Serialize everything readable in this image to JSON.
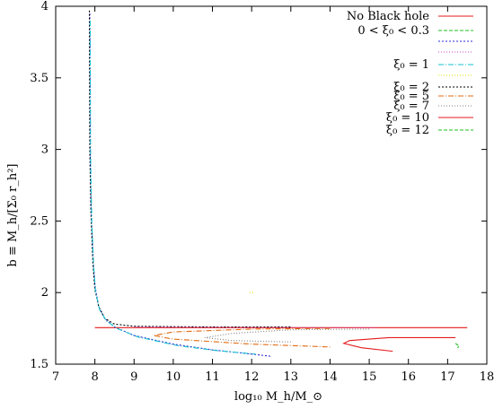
{
  "chart_data": {
    "type": "line",
    "xlabel": "log₁₀ M_h/M_⊙",
    "ylabel": "b ≡ M_h/[Σ₀ r_h²]",
    "xlim": [
      7,
      18
    ],
    "ylim": [
      1.5,
      4
    ],
    "xticks": [
      "7",
      "8",
      "9",
      "10",
      "11",
      "12",
      "13",
      "14",
      "15",
      "16",
      "17",
      "18"
    ],
    "yticks": [
      "1.5",
      "2",
      "2.5",
      "3",
      "3.5",
      "4"
    ],
    "legend_position": "top-right",
    "legend": [
      {
        "label": "No Black hole",
        "color": "#e41a1c",
        "dash": ""
      },
      {
        "label": "0 < ξ₀ < 0.3",
        "color": "#1fbf1f",
        "dash": "4,2"
      },
      {
        "label": "",
        "color": "#2b2bd4",
        "dash": "2,2"
      },
      {
        "label": "",
        "color": "#c04bc0",
        "dash": "1,2"
      },
      {
        "label": "ξ₀ = 1",
        "color": "#17c2d0",
        "dash": "6,2,1,2"
      },
      {
        "label": "",
        "color": "#e0e000",
        "dash": "1,2"
      },
      {
        "label": "ξ₀ = 2",
        "color": "#000000",
        "dash": "2,2"
      },
      {
        "label": "ξ₀ = 5",
        "color": "#e06a10",
        "dash": "6,2,1,2"
      },
      {
        "label": "ξ₀ = 7",
        "color": "#808080",
        "dash": "1,2"
      },
      {
        "label": "ξ₀ = 10",
        "color": "#e41a1c",
        "dash": ""
      },
      {
        "label": "ξ₀ = 12",
        "color": "#1fbf1f",
        "dash": "4,2"
      }
    ],
    "series": [
      {
        "color": "#e41a1c",
        "dash": "",
        "x": [
          8.0,
          17.5
        ],
        "y": [
          1.755,
          1.755
        ]
      },
      {
        "color": "#2b2bd4",
        "dash": "2,2",
        "x": [
          7.87,
          7.88,
          7.9,
          7.95,
          8.0,
          8.1,
          8.25,
          8.5,
          9.0,
          10.0,
          11.0,
          12.0,
          12.5
        ],
        "y": [
          3.95,
          3.0,
          2.6,
          2.25,
          2.05,
          1.9,
          1.82,
          1.76,
          1.7,
          1.64,
          1.6,
          1.57,
          1.555
        ]
      },
      {
        "color": "#000000",
        "dash": "2,2",
        "x": [
          7.86,
          7.87,
          7.9,
          7.95,
          8.0,
          8.1,
          8.25,
          8.5,
          9.0,
          10.0,
          11.0,
          12.0,
          13.0
        ],
        "y": [
          3.97,
          3.0,
          2.55,
          2.2,
          2.02,
          1.9,
          1.82,
          1.78,
          1.765,
          1.762,
          1.76,
          1.76,
          1.76
        ]
      },
      {
        "color": "#17c2d0",
        "dash": "6,2,1,2",
        "x": [
          7.88,
          7.89,
          7.92,
          7.97,
          8.02,
          8.12,
          8.3,
          8.6,
          9.1,
          10.1,
          11.1,
          12.1
        ],
        "y": [
          3.9,
          2.95,
          2.5,
          2.18,
          2.0,
          1.88,
          1.8,
          1.745,
          1.69,
          1.63,
          1.595,
          1.57
        ]
      },
      {
        "color": "#e06a10",
        "dash": "6,2,1,2",
        "x": [
          14.0,
          12.0,
          10.0,
          9.5,
          10.0,
          12.0,
          14.0
        ],
        "y": [
          1.75,
          1.745,
          1.725,
          1.7,
          1.675,
          1.64,
          1.62
        ]
      },
      {
        "color": "#808080",
        "dash": "1,2",
        "x": [
          15.0,
          13.0,
          11.5,
          10.8,
          11.5,
          13.0
        ],
        "y": [
          1.745,
          1.74,
          1.715,
          1.685,
          1.665,
          1.655
        ]
      },
      {
        "color": "#c04bc0",
        "dash": "1,2",
        "x": [
          9.0,
          11.0,
          13.0,
          15.2
        ],
        "y": [
          1.76,
          1.758,
          1.756,
          1.755
        ]
      },
      {
        "color": "#e41a1c",
        "dash": "",
        "x": [
          17.2,
          15.5,
          14.5,
          14.35,
          14.8,
          15.6
        ],
        "y": [
          1.685,
          1.685,
          1.665,
          1.645,
          1.615,
          1.59
        ]
      },
      {
        "color": "#1fbf1f",
        "dash": "4,2",
        "x": [
          17.2,
          17.3,
          17.25
        ],
        "y": [
          1.645,
          1.625,
          1.615
        ]
      },
      {
        "color": "#e0e000",
        "dash": "1,2",
        "x": [
          11.95,
          12.05
        ],
        "y": [
          2.0,
          2.0
        ]
      }
    ]
  }
}
